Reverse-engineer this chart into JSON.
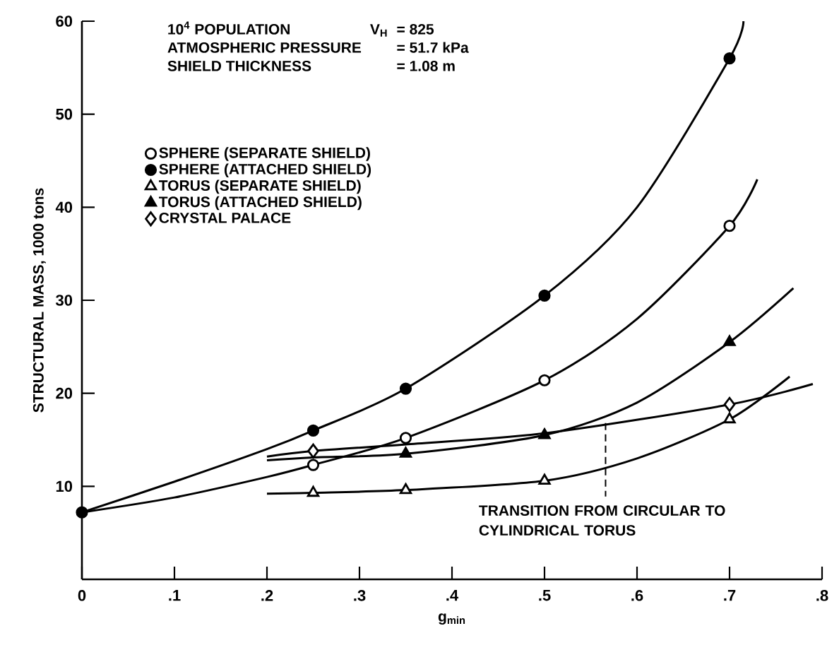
{
  "chart_data": {
    "type": "scatter",
    "xlabel": "g$_{min}$",
    "ylabel": "STRUCTURAL MASS, 1000 tons",
    "xlim": [
      0,
      0.8
    ],
    "ylim": [
      0,
      60
    ],
    "xticks": [
      0,
      {
        "value": 0.1,
        "label": ".1"
      },
      {
        "value": 0.2,
        "label": ".2"
      },
      {
        "value": 0.3,
        "label": ".3"
      },
      {
        "value": 0.4,
        "label": ".4"
      },
      {
        "value": 0.5,
        "label": ".5"
      },
      {
        "value": 0.6,
        "label": ".6"
      },
      {
        "value": 0.7,
        "label": ".7"
      },
      {
        "value": 0.8,
        "label": ".8"
      }
    ],
    "yticks": [
      10,
      20,
      30,
      40,
      50,
      60
    ],
    "legend": "top left",
    "annotations": [
      "10$^{4}$ POPULATION",
      "V$_{H}$",
      "= 825",
      "ATMOSPHERIC PRESSURE",
      "= 51.7 kPa",
      "SHIELD THICKNESS",
      "= 1.08 m",
      {
        "text": "TRANSITION FROM CIRCULAR TO CYLINDRICAL TORUS",
        "x": 0.566,
        "y": 16.8
      }
    ],
    "series": [
      {
        "name": "SPHERE (SEPARATE SHIELD)",
        "color": "#ffffff",
        "marker": "circle",
        "x": [
          0.25,
          0.35,
          0.5,
          0.7
        ],
        "values": [
          12.3,
          15.2,
          21.4,
          38
        ]
      },
      {
        "name": "SPHERE (ATTACHED SHIELD)",
        "color": "#000000",
        "marker": "circle",
        "x": [
          0,
          0.25,
          0.35,
          0.5,
          0.7
        ],
        "values": [
          7.2,
          16,
          20.5,
          30.5,
          56
        ]
      },
      {
        "name": "TORUS (SEPARATE SHIELD)",
        "color": "#ffffff",
        "marker": "triangle",
        "x": [
          0.25,
          0.35,
          0.5,
          0.7
        ],
        "values": [
          9.3,
          9.6,
          10.6,
          17.2
        ]
      },
      {
        "name": "TORUS (ATTACHED SHIELD)",
        "color": "#000000",
        "marker": "triangle",
        "x": [
          0.35,
          0.5,
          0.7
        ],
        "values": [
          13.5,
          15.5,
          25.5
        ]
      },
      {
        "name": "CRYSTAL PALACE",
        "color": "#ffffff",
        "marker": "diamond",
        "x": [
          0.25,
          0.7
        ],
        "values": [
          13.8,
          18.8
        ]
      },
      {
        "type": "line",
        "color": "#000000",
        "x": [
          0,
          0.1,
          0.2,
          0.25,
          0.35,
          0.5,
          0.6,
          0.7,
          0.73
        ],
        "values": [
          7.2,
          8.8,
          11,
          12.3,
          15.2,
          21.4,
          28,
          38,
          43
        ]
      },
      {
        "type": "line",
        "color": "#000000",
        "x": [
          0,
          0.1,
          0.2,
          0.25,
          0.35,
          0.5,
          0.6,
          0.7,
          0.715
        ],
        "values": [
          7.2,
          10.5,
          14,
          16,
          20.5,
          30.5,
          40,
          56,
          60
        ]
      },
      {
        "type": "line",
        "color": "#000000",
        "x": [
          0.2,
          0.25,
          0.35,
          0.5,
          0.6,
          0.7,
          0.765
        ],
        "values": [
          9.2,
          9.3,
          9.6,
          10.6,
          13,
          17.2,
          21.8
        ]
      },
      {
        "type": "line",
        "color": "#000000",
        "x": [
          0.2,
          0.25,
          0.35,
          0.5,
          0.6,
          0.7,
          0.769
        ],
        "values": [
          12.8,
          13.1,
          13.5,
          15.5,
          19,
          25.5,
          31.3
        ]
      },
      {
        "type": "line",
        "color": "#000000",
        "x": [
          0.2,
          0.25,
          0.35,
          0.5,
          0.7,
          0.79
        ],
        "values": [
          13.2,
          13.8,
          14.5,
          15.7,
          18.8,
          21
        ]
      }
    ]
  }
}
